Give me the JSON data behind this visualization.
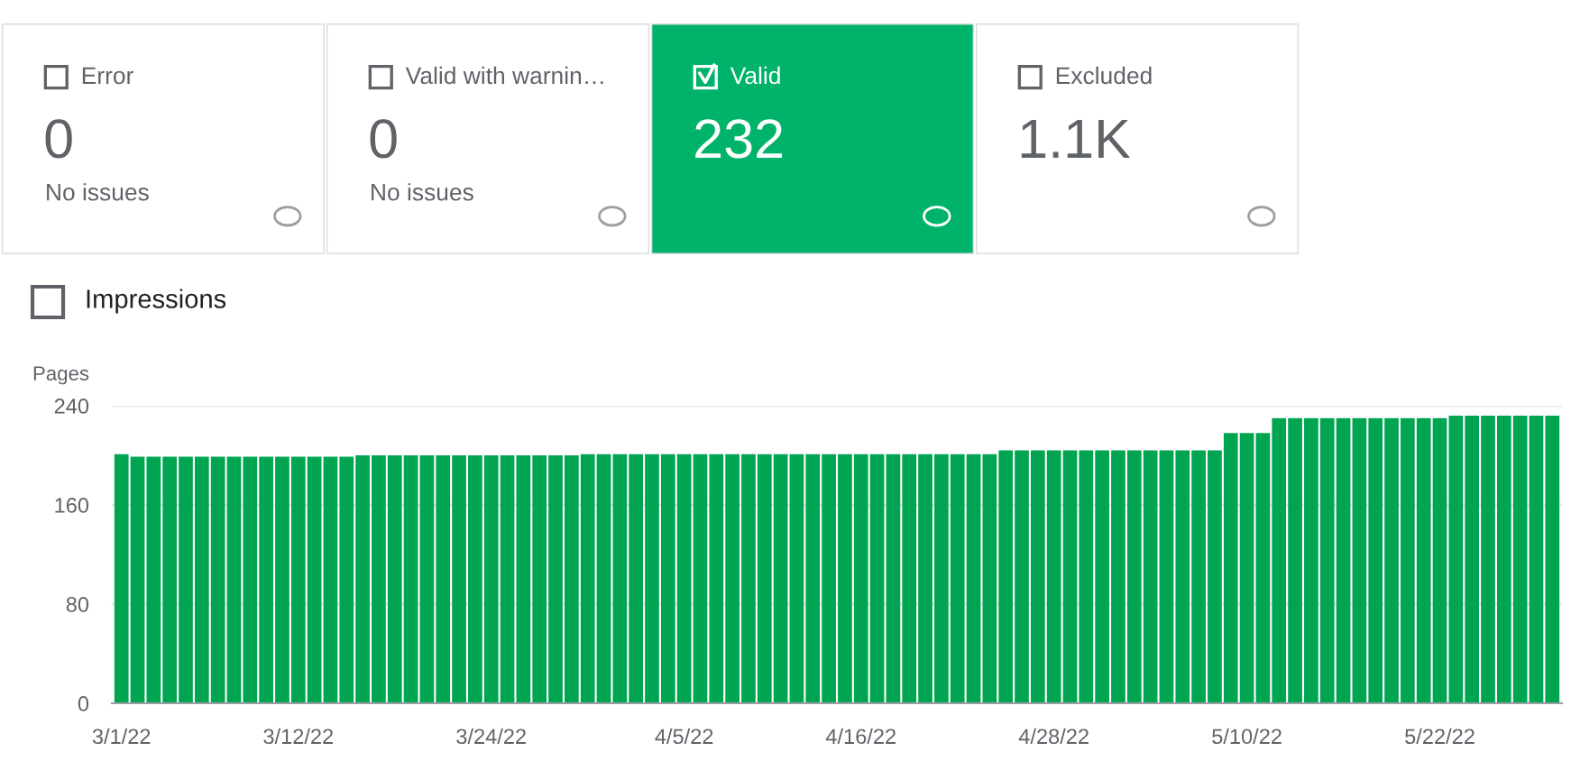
{
  "chart_data": [
    {
      "type": "other",
      "title": "Error",
      "values": [
        0
      ],
      "value_labels": [
        "0"
      ],
      "annotations": [
        "No issues"
      ],
      "colors": [
        "#ffffff"
      ]
    },
    {
      "type": "other",
      "title": "Valid with warnin…",
      "values": [
        0
      ],
      "value_labels": [
        "0"
      ],
      "annotations": [
        "No issues"
      ],
      "colors": [
        "#ffffff"
      ]
    },
    {
      "type": "other",
      "title": "Valid",
      "values": [
        232
      ],
      "value_labels": [
        "232"
      ],
      "colors": [
        "#00b36b"
      ]
    },
    {
      "type": "other",
      "title": "Excluded",
      "values": [
        1100
      ],
      "value_labels": [
        "1.1K"
      ],
      "colors": [
        "#ffffff"
      ]
    },
    {
      "type": "bar",
      "ylabel": "Pages",
      "annotations": [
        "Impressions"
      ],
      "color": "#00a451",
      "ylim": [
        0,
        240
      ],
      "yticks": [
        0,
        80,
        160,
        240
      ],
      "grid": "y",
      "categories": [
        "3/1/22",
        null,
        null,
        null,
        null,
        null,
        null,
        null,
        null,
        null,
        null,
        "3/12/22",
        null,
        null,
        null,
        null,
        null,
        null,
        null,
        null,
        null,
        null,
        null,
        "3/24/22",
        null,
        null,
        null,
        null,
        null,
        null,
        null,
        null,
        null,
        null,
        null,
        "4/5/22",
        null,
        null,
        null,
        null,
        null,
        null,
        null,
        null,
        null,
        null,
        "4/16/22",
        null,
        null,
        null,
        null,
        null,
        null,
        null,
        null,
        null,
        null,
        null,
        "4/28/22",
        null,
        null,
        null,
        null,
        null,
        null,
        null,
        null,
        null,
        null,
        null,
        "5/10/22",
        null,
        null,
        null,
        null,
        null,
        null,
        null,
        null,
        null,
        null,
        null,
        "5/22/22",
        null,
        null,
        null,
        null,
        null,
        null,
        null
      ],
      "values": [
        201,
        199,
        199,
        199,
        199,
        199,
        199,
        199,
        199,
        199,
        199,
        199,
        199,
        199,
        199,
        200,
        200,
        200,
        200,
        200,
        200,
        200,
        200,
        200,
        200,
        200,
        200,
        200,
        200,
        201,
        201,
        201,
        201,
        201,
        201,
        201,
        201,
        201,
        201,
        201,
        201,
        201,
        201,
        201,
        201,
        201,
        201,
        201,
        201,
        201,
        201,
        201,
        201,
        201,
        201,
        204,
        204,
        204,
        204,
        204,
        204,
        204,
        204,
        204,
        204,
        204,
        204,
        204,
        204,
        218,
        218,
        218,
        230,
        230,
        230,
        230,
        230,
        230,
        230,
        230,
        230,
        230,
        230,
        232,
        232,
        232,
        232,
        232,
        232,
        232
      ]
    }
  ]
}
